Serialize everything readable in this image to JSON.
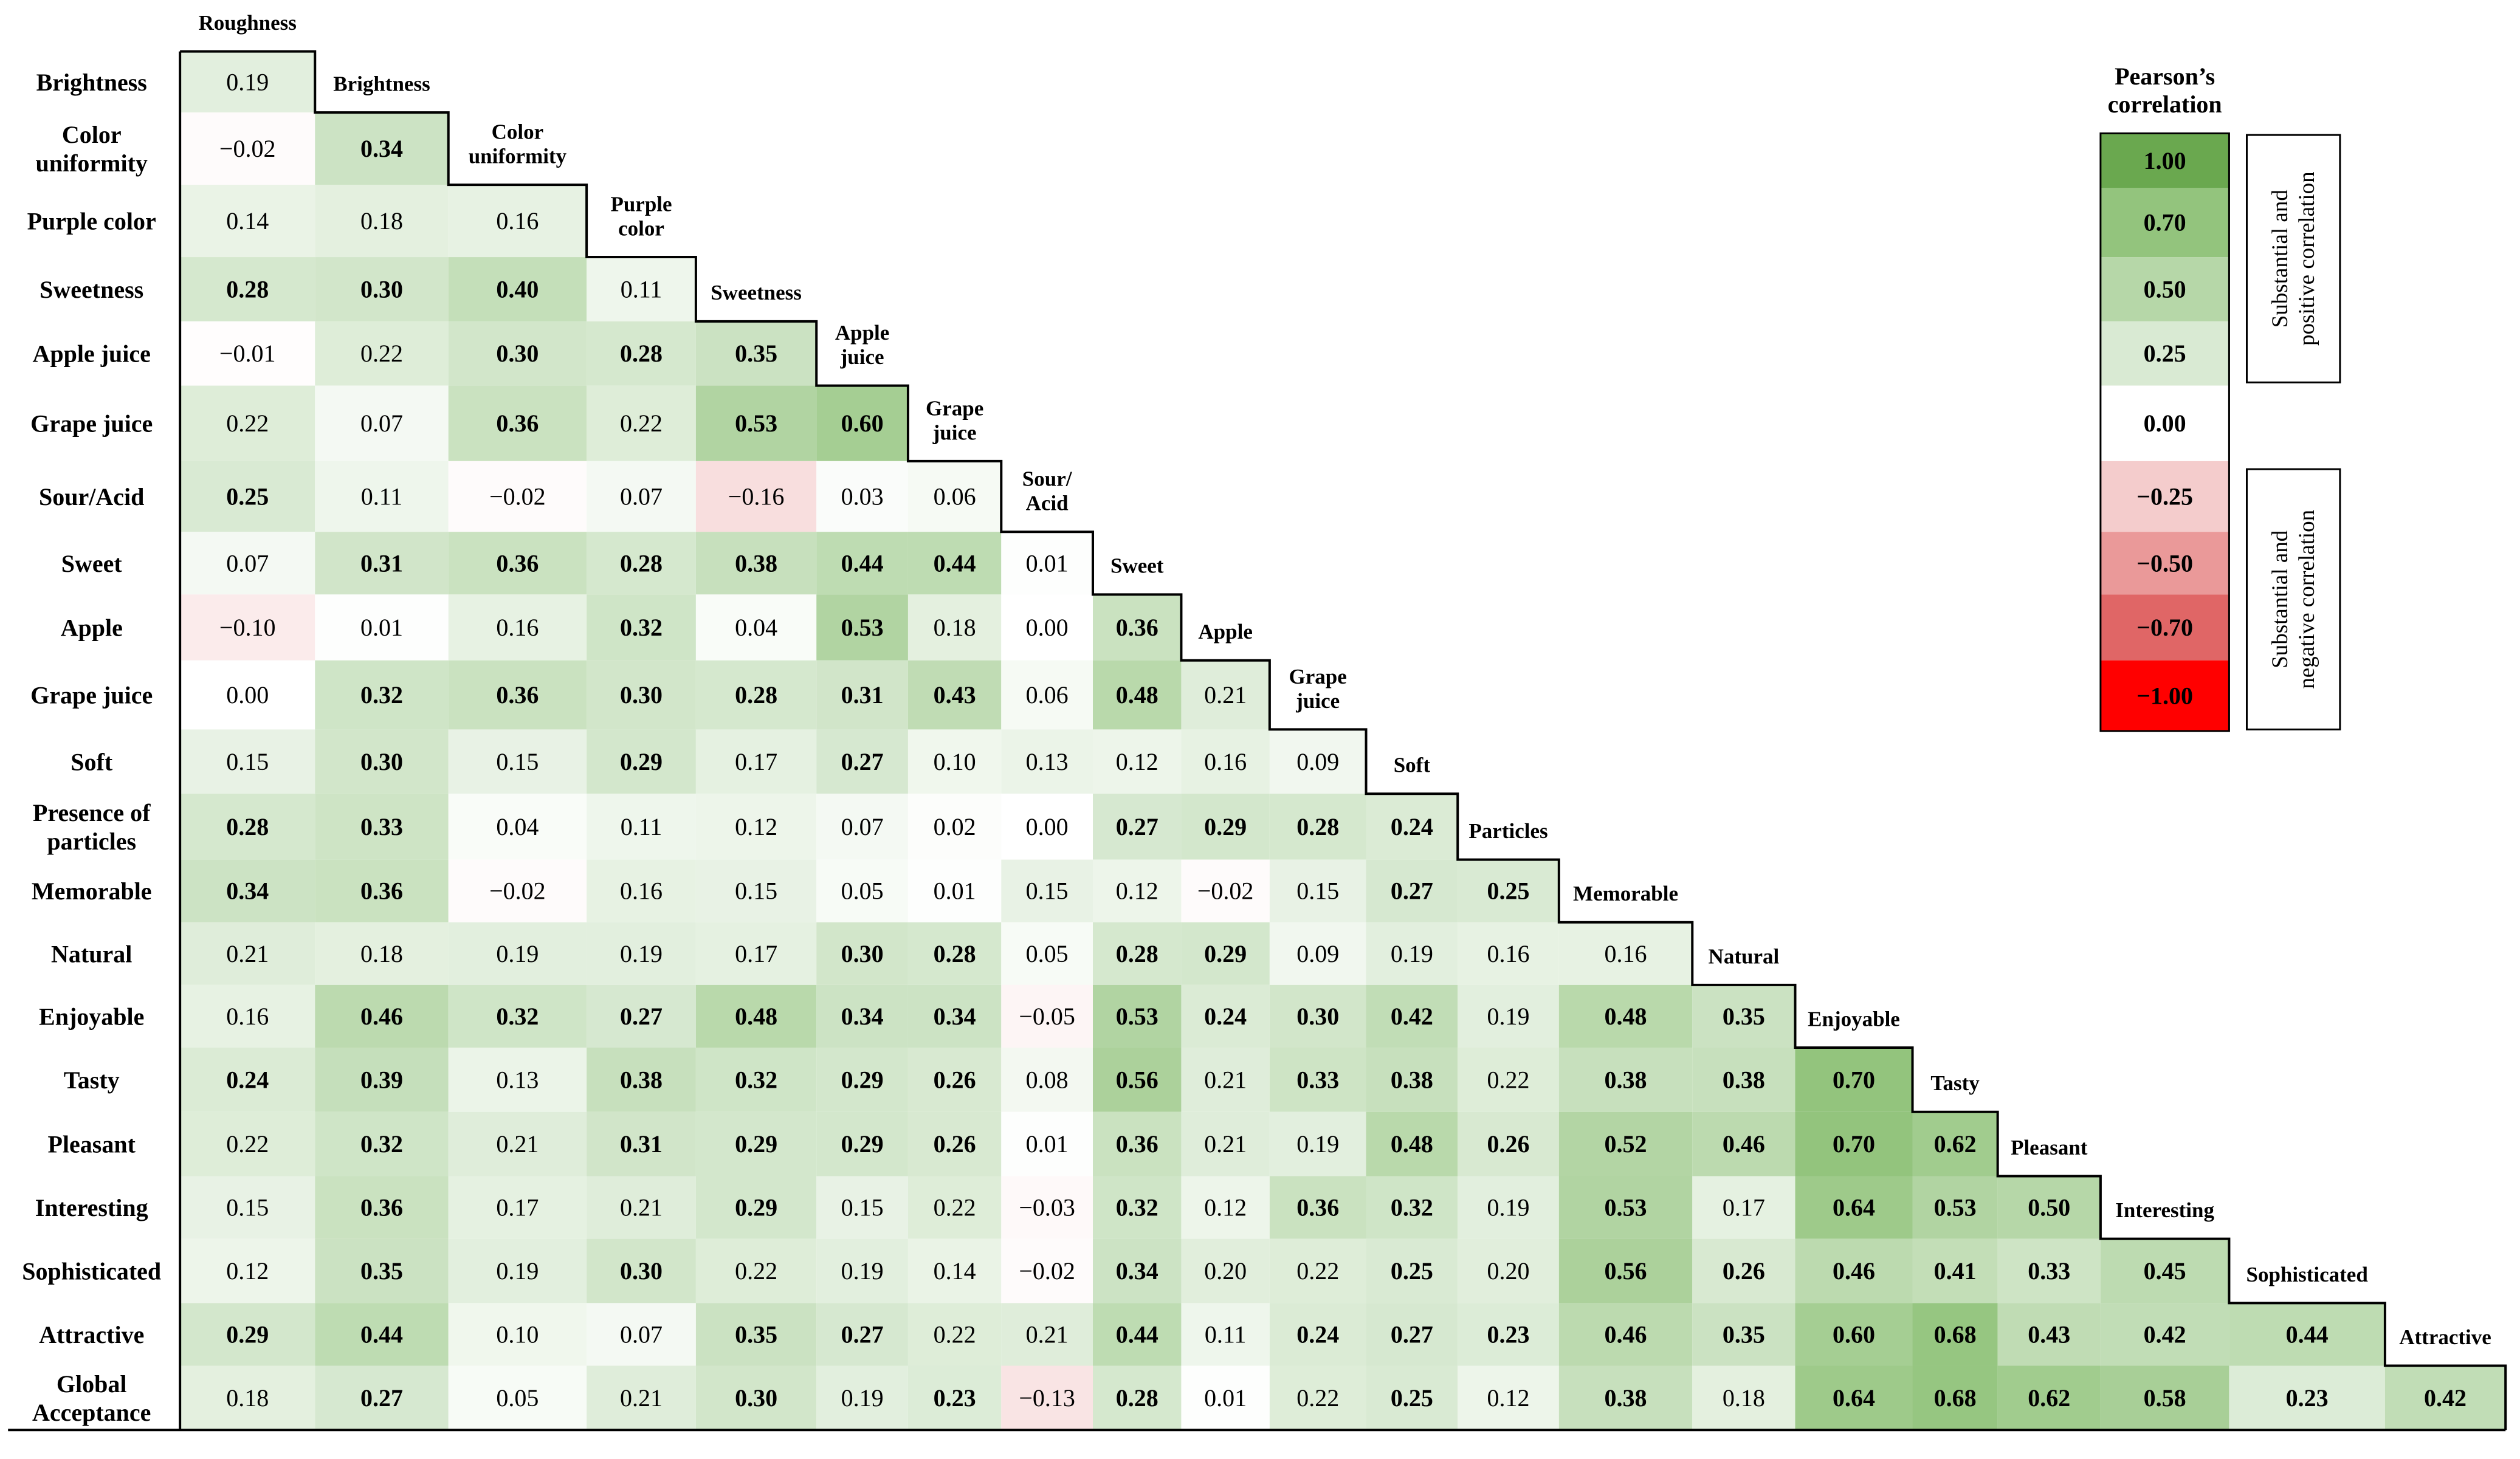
{
  "chart_data": {
    "type": "heatmap",
    "title": "",
    "row_labels": [
      [
        "Brightness"
      ],
      [
        "Color",
        "uniformity"
      ],
      [
        "Purple color"
      ],
      [
        "Sweetness"
      ],
      [
        "Apple juice"
      ],
      [
        "Grape juice"
      ],
      [
        "Sour/Acid"
      ],
      [
        "Sweet"
      ],
      [
        "Apple"
      ],
      [
        "Grape juice"
      ],
      [
        "Soft"
      ],
      [
        "Presence of",
        "particles"
      ],
      [
        "Memorable"
      ],
      [
        "Natural"
      ],
      [
        "Enjoyable"
      ],
      [
        "Tasty"
      ],
      [
        "Pleasant"
      ],
      [
        "Interesting"
      ],
      [
        "Sophisticated"
      ],
      [
        "Attractive"
      ],
      [
        "Global",
        "Acceptance"
      ]
    ],
    "col_labels": [
      [
        "Roughness"
      ],
      [
        "Brightness"
      ],
      [
        "Color",
        "uniformity"
      ],
      [
        "Purple",
        "color"
      ],
      [
        "Sweetness"
      ],
      [
        "Apple",
        "juice"
      ],
      [
        "Grape",
        "juice"
      ],
      [
        "Sour/",
        "Acid"
      ],
      [
        "Sweet"
      ],
      [
        "Apple"
      ],
      [
        "Grape",
        "juice"
      ],
      [
        "Soft"
      ],
      [
        "Particles"
      ],
      [
        "Memorable"
      ],
      [
        "Natural"
      ],
      [
        "Enjoyable"
      ],
      [
        "Tasty"
      ],
      [
        "Pleasant"
      ],
      [
        "Interesting"
      ],
      [
        "Sophisticated"
      ],
      [
        "Attractive"
      ]
    ],
    "values": [
      [
        0.19
      ],
      [
        -0.02,
        0.34
      ],
      [
        0.14,
        0.18,
        0.16
      ],
      [
        0.28,
        0.3,
        0.4,
        0.11
      ],
      [
        -0.01,
        0.22,
        0.3,
        0.28,
        0.35
      ],
      [
        0.22,
        0.07,
        0.36,
        0.22,
        0.53,
        0.6
      ],
      [
        0.25,
        0.11,
        -0.02,
        0.07,
        -0.16,
        0.03,
        0.06
      ],
      [
        0.07,
        0.31,
        0.36,
        0.28,
        0.38,
        0.44,
        0.44,
        0.01
      ],
      [
        -0.1,
        0.01,
        0.16,
        0.32,
        0.04,
        0.53,
        0.18,
        0.0,
        0.36
      ],
      [
        0.0,
        0.32,
        0.36,
        0.3,
        0.28,
        0.31,
        0.43,
        0.06,
        0.48,
        0.21
      ],
      [
        0.15,
        0.3,
        0.15,
        0.29,
        0.17,
        0.27,
        0.1,
        0.13,
        0.12,
        0.16,
        0.09
      ],
      [
        0.28,
        0.33,
        0.04,
        0.11,
        0.12,
        0.07,
        0.02,
        0.0,
        0.27,
        0.29,
        0.28,
        0.24
      ],
      [
        0.34,
        0.36,
        -0.02,
        0.16,
        0.15,
        0.05,
        0.01,
        0.15,
        0.12,
        -0.02,
        0.15,
        0.27,
        0.25
      ],
      [
        0.21,
        0.18,
        0.19,
        0.19,
        0.17,
        0.3,
        0.28,
        0.05,
        0.28,
        0.29,
        0.09,
        0.19,
        0.16,
        0.16
      ],
      [
        0.16,
        0.46,
        0.32,
        0.27,
        0.48,
        0.34,
        0.34,
        -0.05,
        0.53,
        0.24,
        0.3,
        0.42,
        0.19,
        0.48,
        0.35
      ],
      [
        0.24,
        0.39,
        0.13,
        0.38,
        0.32,
        0.29,
        0.26,
        0.08,
        0.56,
        0.21,
        0.33,
        0.38,
        0.22,
        0.38,
        0.38,
        0.7
      ],
      [
        0.22,
        0.32,
        0.21,
        0.31,
        0.29,
        0.29,
        0.26,
        0.01,
        0.36,
        0.21,
        0.19,
        0.48,
        0.26,
        0.52,
        0.46,
        0.7,
        0.62
      ],
      [
        0.15,
        0.36,
        0.17,
        0.21,
        0.29,
        0.15,
        0.22,
        -0.03,
        0.32,
        0.12,
        0.36,
        0.32,
        0.19,
        0.53,
        0.17,
        0.64,
        0.53,
        0.5
      ],
      [
        0.12,
        0.35,
        0.19,
        0.3,
        0.22,
        0.19,
        0.14,
        -0.02,
        0.34,
        0.2,
        0.22,
        0.25,
        0.2,
        0.56,
        0.26,
        0.46,
        0.41,
        0.33,
        0.45
      ],
      [
        0.29,
        0.44,
        0.1,
        0.07,
        0.35,
        0.27,
        0.22,
        0.21,
        0.44,
        0.11,
        0.24,
        0.27,
        0.23,
        0.46,
        0.35,
        0.6,
        0.68,
        0.43,
        0.42,
        0.44
      ],
      [
        0.18,
        0.27,
        0.05,
        0.21,
        0.3,
        0.19,
        0.23,
        -0.13,
        0.28,
        0.01,
        0.22,
        0.25,
        0.12,
        0.38,
        0.18,
        0.64,
        0.68,
        0.62,
        0.58,
        0.23,
        0.42
      ]
    ],
    "bold_threshold": 0.23,
    "legend": {
      "title": [
        "Pearson’s",
        "correlation"
      ],
      "stops": [
        {
          "value": 1.0,
          "color": "#6aa84f"
        },
        {
          "value": 0.7,
          "color": "#93c47d"
        },
        {
          "value": 0.5,
          "color": "#b6d7a8"
        },
        {
          "value": 0.25,
          "color": "#d9ead3"
        },
        {
          "value": 0.0,
          "color": "#ffffff"
        },
        {
          "value": -0.25,
          "color": "#f4cccc"
        },
        {
          "value": -0.5,
          "color": "#ea9999"
        },
        {
          "value": -0.7,
          "color": "#e06666"
        },
        {
          "value": -1.0,
          "color": "#ff0000"
        }
      ],
      "labels": [
        "1.00",
        "0.70",
        "0.50",
        "0.25",
        "0.00",
        "−0.25",
        "−0.50",
        "−0.70",
        "−1.00"
      ],
      "positive_note": [
        "Substantial and",
        "positive correlation"
      ],
      "negative_note": [
        "Substantial and",
        "negative correlation"
      ]
    },
    "colors": {
      "positive_max": "#6aa84f",
      "negative_max": "#ff0000",
      "neutral": "#ffffff"
    }
  }
}
